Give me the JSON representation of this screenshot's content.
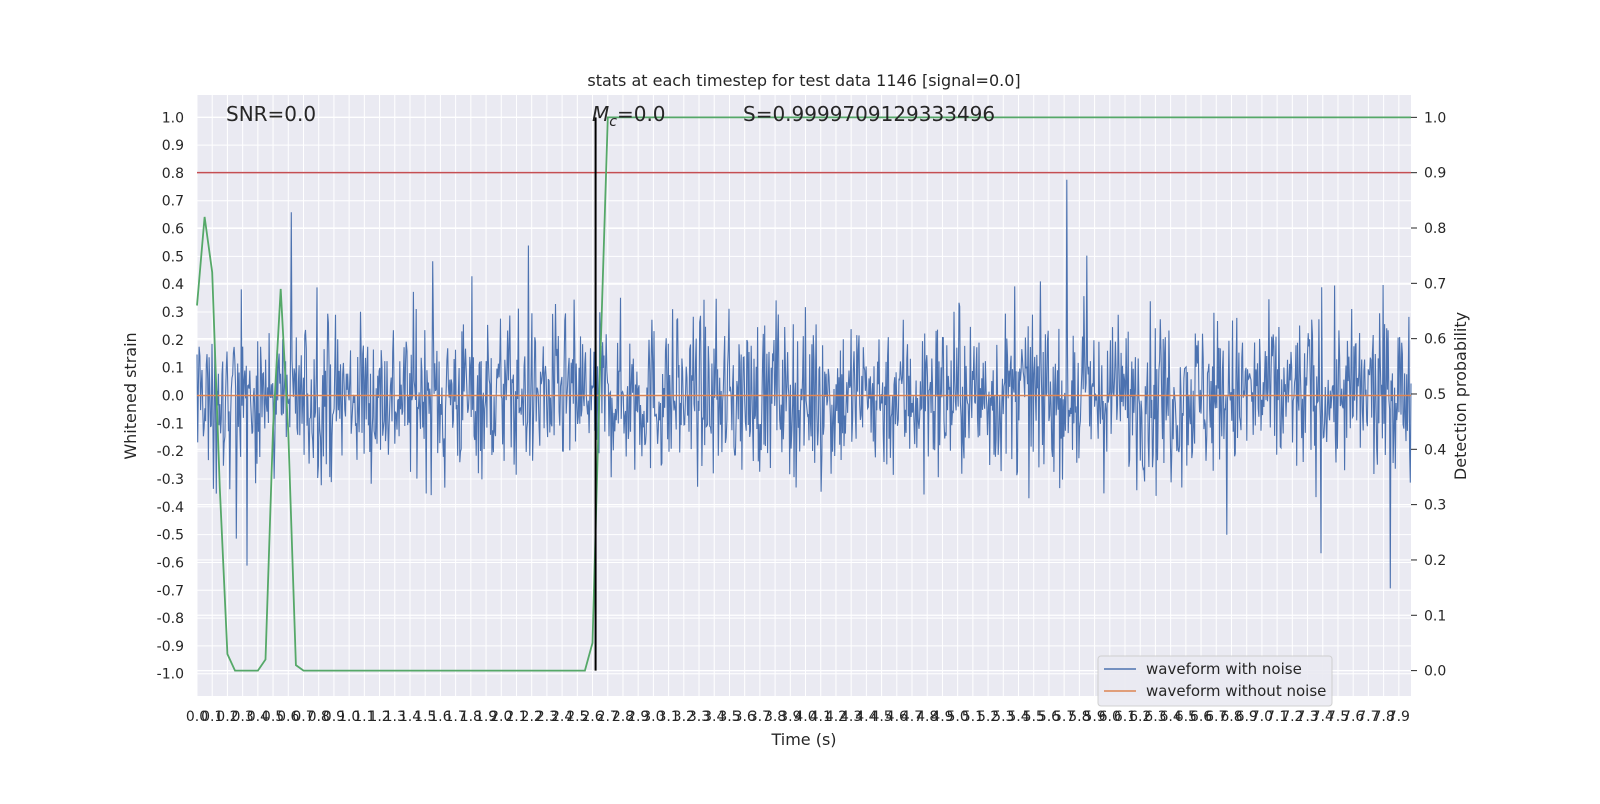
{
  "chart_data": {
    "type": "line",
    "title": "stats at each timestep for test data 1146 [signal=0.0]",
    "xlabel": "Time (s)",
    "ylabel": "Whitened strain",
    "y2label": "Detection probability",
    "xlim": [
      0.0,
      7.98
    ],
    "ylim": [
      -1.08,
      1.08
    ],
    "y2lim": [
      -0.0459,
      1.0404
    ],
    "grid": true,
    "legend": {
      "position": "lower-right",
      "entries": [
        "waveform with noise",
        "waveform without noise"
      ]
    },
    "annotations": {
      "snr": "SNR=0.0",
      "mc": "=0.0",
      "mc_symbol": "M",
      "mc_sub": "c",
      "s": "S=0.9999709129333496"
    },
    "x_ticks": [
      "0.0",
      "0.1",
      "0.2",
      "0.3",
      "0.4",
      "0.5",
      "0.6",
      "0.7",
      "0.8",
      "0.9",
      "1.0",
      "1.1",
      "1.2",
      "1.3",
      "1.4",
      "1.5",
      "1.6",
      "1.7",
      "1.8",
      "1.9",
      "2.0",
      "2.1",
      "2.2",
      "2.3",
      "2.4",
      "2.5",
      "2.6",
      "2.7",
      "2.8",
      "2.9",
      "3.0",
      "3.1",
      "3.2",
      "3.3",
      "3.4",
      "3.5",
      "3.6",
      "3.7",
      "3.8",
      "3.9",
      "4.0",
      "4.1",
      "4.2",
      "4.3",
      "4.4",
      "4.5",
      "4.6",
      "4.7",
      "4.8",
      "4.9",
      "5.0",
      "5.1",
      "5.2",
      "5.3",
      "5.4",
      "5.5",
      "5.6",
      "5.7",
      "5.8",
      "5.9",
      "6.0",
      "6.1",
      "6.2",
      "6.3",
      "6.4",
      "6.5",
      "6.6",
      "6.7",
      "6.8",
      "6.9",
      "7.0",
      "7.1",
      "7.2",
      "7.3",
      "7.4",
      "7.5",
      "7.6",
      "7.7",
      "7.8",
      "7.9"
    ],
    "y_ticks": [
      "1.0",
      "0.9",
      "0.8",
      "0.7",
      "0.6",
      "0.5",
      "0.4",
      "0.3",
      "0.2",
      "0.1",
      "0.0",
      "-0.1",
      "-0.2",
      "-0.3",
      "-0.4",
      "-0.5",
      "-0.6",
      "-0.7",
      "-0.8",
      "-0.9",
      "-1.0"
    ],
    "y2_ticks": [
      "1.0",
      "0.9",
      "0.8",
      "0.7",
      "0.6",
      "0.5",
      "0.4",
      "0.3",
      "0.2",
      "0.1",
      "0.0"
    ],
    "threshold_line": {
      "axis": "y2",
      "value": 0.9,
      "color": "#c44e52"
    },
    "marker_line": {
      "x": 2.62,
      "color": "#000000"
    },
    "series": [
      {
        "name": "waveform with noise",
        "color": "#4c72b0",
        "axis": "y",
        "style": "dense-noise",
        "amplitude_range": [
          -0.97,
          1.0
        ]
      },
      {
        "name": "waveform without noise",
        "color": "#dd8452",
        "axis": "y",
        "x": [
          0.0,
          7.98
        ],
        "y": [
          0.0,
          0.0
        ]
      },
      {
        "name": "",
        "color": "#55a868",
        "axis": "y2",
        "x": [
          0.0,
          0.05,
          0.1,
          0.15,
          0.2,
          0.25,
          0.3,
          0.35,
          0.4,
          0.45,
          0.5,
          0.55,
          0.6,
          0.65,
          0.7,
          0.75,
          0.8,
          2.55,
          2.6,
          2.65,
          2.7,
          2.75,
          7.98
        ],
        "y": [
          0.66,
          0.82,
          0.72,
          0.33,
          0.03,
          0.0,
          0.0,
          0.0,
          0.0,
          0.02,
          0.44,
          0.69,
          0.43,
          0.01,
          0.0,
          0.0,
          0.0,
          0.0,
          0.05,
          0.55,
          1.0,
          1.0,
          1.0
        ]
      }
    ]
  }
}
